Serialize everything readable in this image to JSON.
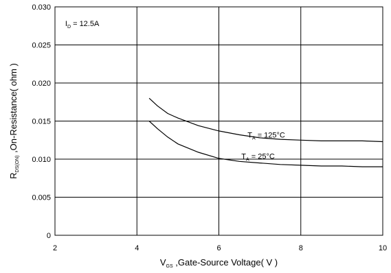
{
  "chart_data": {
    "type": "line",
    "xlim": [
      2,
      10
    ],
    "ylim": [
      0,
      0.03
    ],
    "x_ticks": [
      "2",
      "4",
      "6",
      "8",
      "10"
    ],
    "y_ticks": [
      "0",
      "0.005",
      "0.010",
      "0.015",
      "0.020",
      "0.025",
      "0.030"
    ],
    "grid": true,
    "xlabel": {
      "main": "V",
      "sub": "GS",
      "rest": " ,Gate-Source Voltage( V )"
    },
    "ylabel": {
      "main": "R",
      "sub": "DS(ON)",
      "rest": " ,On-Resistance( ohm )"
    },
    "annotations": [
      {
        "main": "I",
        "sub": "D",
        "rest": " = 12.5A"
      }
    ],
    "series": [
      {
        "name": {
          "main": "T",
          "sub": "A",
          "rest": " = 125°C"
        },
        "x": [
          4.3,
          4.5,
          4.75,
          5.0,
          5.5,
          6.0,
          6.5,
          7.0,
          7.5,
          8.0,
          8.5,
          9.0,
          9.5,
          10.0
        ],
        "y": [
          0.018,
          0.017,
          0.016,
          0.0154,
          0.0144,
          0.0137,
          0.0132,
          0.0128,
          0.0126,
          0.0125,
          0.0124,
          0.0124,
          0.0124,
          0.0123
        ]
      },
      {
        "name": {
          "main": "T",
          "sub": "A",
          "rest": " = 25°C"
        },
        "x": [
          4.3,
          4.5,
          4.75,
          5.0,
          5.5,
          6.0,
          6.5,
          7.0,
          7.5,
          8.0,
          8.5,
          9.0,
          9.5,
          10.0
        ],
        "y": [
          0.015,
          0.014,
          0.0129,
          0.012,
          0.0109,
          0.0101,
          0.0097,
          0.0095,
          0.0093,
          0.0092,
          0.0091,
          0.0091,
          0.009,
          0.009
        ]
      }
    ]
  }
}
